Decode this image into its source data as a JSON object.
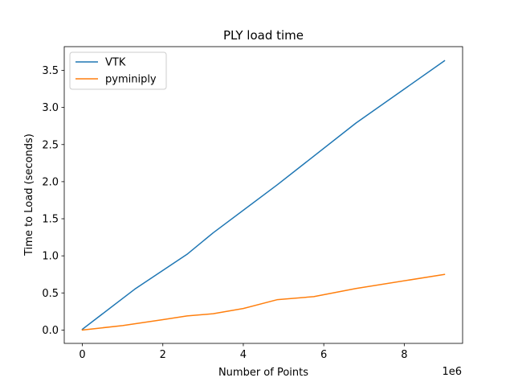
{
  "chart_data": {
    "type": "line",
    "title": "PLY load time",
    "xlabel": "Number of Points",
    "ylabel": "Time to Load (seconds)",
    "x_offset_label": "1e6",
    "xlim": [
      -0.45,
      9.45
    ],
    "ylim": [
      -0.18,
      3.82
    ],
    "xticks": [
      0,
      2,
      4,
      6,
      8
    ],
    "xtick_labels": [
      "0",
      "2",
      "4",
      "6",
      "8"
    ],
    "yticks": [
      0.0,
      0.5,
      1.0,
      1.5,
      2.0,
      2.5,
      3.0,
      3.5
    ],
    "ytick_labels": [
      "0.0",
      "0.5",
      "1.0",
      "1.5",
      "2.0",
      "2.5",
      "3.0",
      "3.5"
    ],
    "grid": false,
    "legend_position": "top-left",
    "series": [
      {
        "name": "VTK",
        "color": "#1f77b4",
        "x": [
          0.0,
          1.3,
          2.6,
          3.25,
          4.85,
          6.8,
          9.0
        ],
        "y": [
          0.01,
          0.55,
          1.02,
          1.31,
          1.96,
          2.79,
          3.63
        ]
      },
      {
        "name": "pyminiply",
        "color": "#ff7f0e",
        "x": [
          0.0,
          1.0,
          2.0,
          2.6,
          3.25,
          4.0,
          4.85,
          5.75,
          6.8,
          9.0
        ],
        "y": [
          0.0,
          0.06,
          0.14,
          0.19,
          0.22,
          0.29,
          0.41,
          0.45,
          0.56,
          0.75
        ]
      }
    ]
  }
}
